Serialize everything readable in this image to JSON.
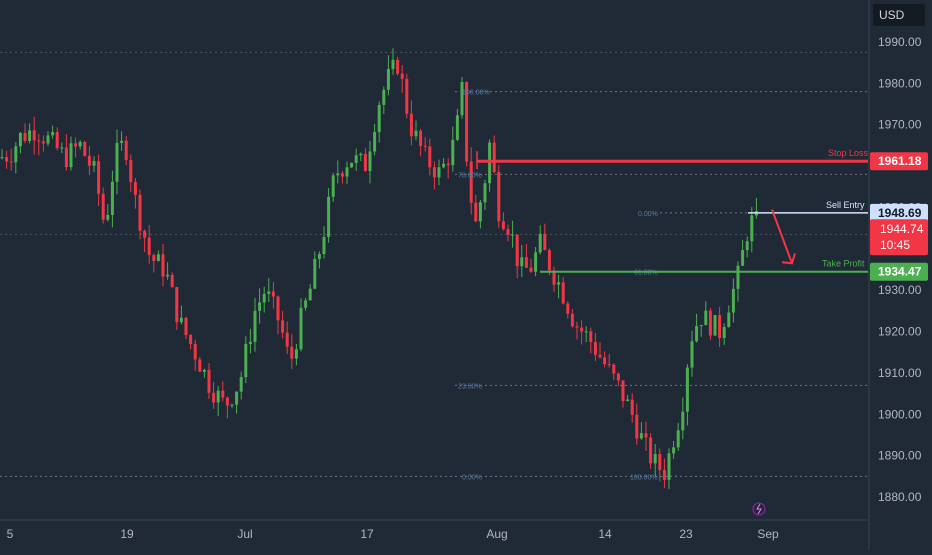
{
  "currency": "USD",
  "chart_data": {
    "type": "candlestick",
    "ylim": [
      1876,
      1994
    ],
    "y_ticks": [
      "1990.00",
      "1980.00",
      "1970.00",
      "1960.00",
      "1950.00",
      "1940.00",
      "1930.00",
      "1920.00",
      "1910.00",
      "1900.00",
      "1890.00",
      "1880.00"
    ],
    "x_ticks": [
      "5",
      "19",
      "Jul",
      "17",
      "Aug",
      "14",
      "23",
      "Sep"
    ],
    "current_price": "1944.74",
    "countdown": "10:45",
    "levels": [
      {
        "name": "Stop Loss",
        "value": "1961.18",
        "color": "#f23645"
      },
      {
        "name": "Sell Entry",
        "value": "1948.69",
        "color": "#d6e4ff"
      },
      {
        "name": "Take Profit",
        "value": "1934.47",
        "color": "#4caf50"
      }
    ],
    "fibonacci": [
      {
        "label": "100.00%",
        "value": 1978
      },
      {
        "label": "78.60%",
        "value": 1958
      },
      {
        "label": "0.00%",
        "value": 1948.7
      },
      {
        "label": "61.80%",
        "value": 1934.5
      },
      {
        "label": "23.60%",
        "value": 1907
      },
      {
        "label": "0.00%",
        "value": 1885
      },
      {
        "label": "100.00%",
        "value": 1885
      }
    ],
    "annotation": "projected-move-down",
    "colors": {
      "up": "#4caf50",
      "down": "#f23645",
      "background": "#1f2a36",
      "grid": "#2a3441"
    }
  }
}
